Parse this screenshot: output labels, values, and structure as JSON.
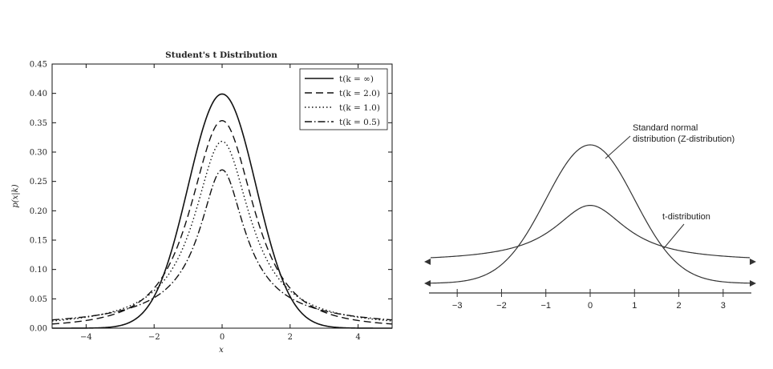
{
  "chart_data": [
    {
      "type": "line",
      "title": "Student's t Distribution",
      "xlabel": "x",
      "ylabel": "p(x|k)",
      "xlim": [
        -5,
        5
      ],
      "ylim": [
        0,
        0.45
      ],
      "xticks": [
        "−4",
        "−2",
        "0",
        "2",
        "4"
      ],
      "xtick_values": [
        -4,
        -2,
        0,
        2,
        4
      ],
      "yticks": [
        "0.00",
        "0.05",
        "0.10",
        "0.15",
        "0.20",
        "0.25",
        "0.30",
        "0.35",
        "0.40",
        "0.45"
      ],
      "ytick_values": [
        0,
        0.05,
        0.1,
        0.15,
        0.2,
        0.25,
        0.3,
        0.35,
        0.4,
        0.45
      ],
      "legend_position": "top-right",
      "grid": false,
      "series": [
        {
          "name": "t(k = ∞)",
          "k": "inf",
          "style": "solid",
          "peak": 0.4
        },
        {
          "name": "t(k = 2.0)",
          "k": 2.0,
          "style": "dashed",
          "peak": 0.354
        },
        {
          "name": "t(k = 1.0)",
          "k": 1.0,
          "style": "dotted",
          "peak": 0.318
        },
        {
          "name": "t(k = 0.5)",
          "k": 0.5,
          "style": "dashdot",
          "peak": 0.269
        }
      ],
      "color": "#111111"
    },
    {
      "type": "line",
      "xlim": [
        -3.6,
        3.6
      ],
      "xticks": [
        "−3",
        "−2",
        "−1",
        "0",
        "1",
        "2",
        "3"
      ],
      "xtick_values": [
        -3,
        -2,
        -1,
        0,
        1,
        2,
        3
      ],
      "grid": false,
      "annotations": {
        "normal": [
          "Standard normal",
          "distribution (Z-distribution)"
        ],
        "t": "t-distribution"
      },
      "series": [
        {
          "label": "Standard normal distribution",
          "peak_relative": 1.0
        },
        {
          "label": "t-distribution",
          "peak_relative": 0.64
        }
      ],
      "color": "#333333"
    }
  ]
}
